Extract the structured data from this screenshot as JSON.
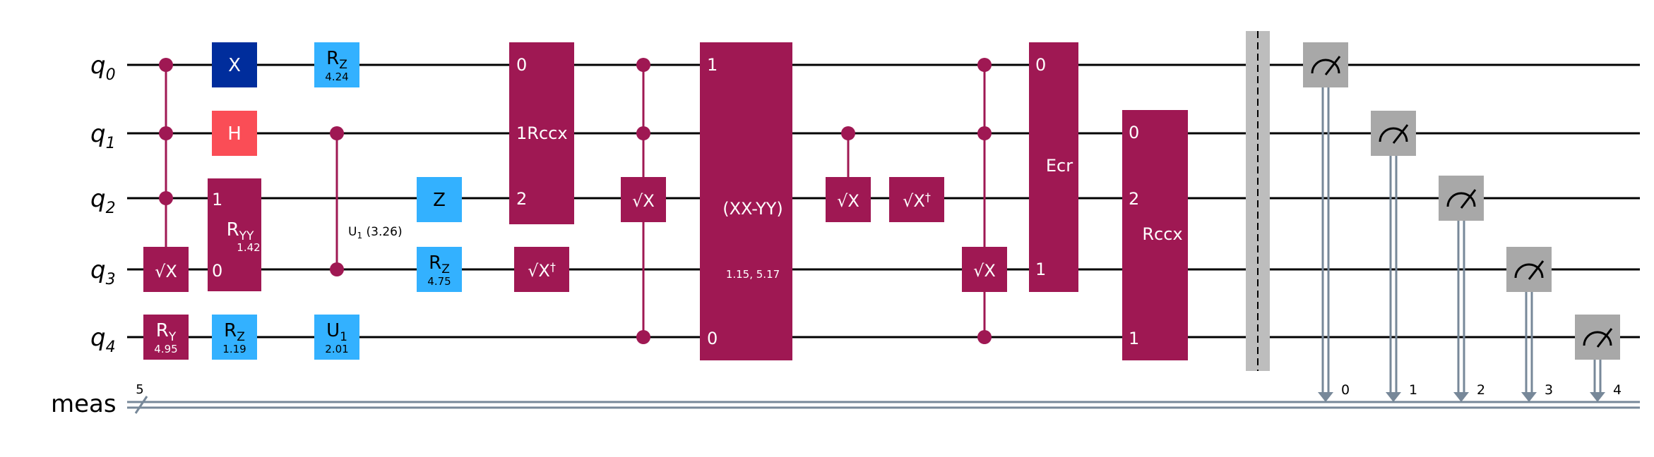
{
  "qubits": [
    {
      "base": "q",
      "index": "0"
    },
    {
      "base": "q",
      "index": "1"
    },
    {
      "base": "q",
      "index": "2"
    },
    {
      "base": "q",
      "index": "3"
    },
    {
      "base": "q",
      "index": "4"
    }
  ],
  "classical_register": {
    "label": "meas",
    "width_label": "5"
  },
  "colors": {
    "wire": "#000000",
    "classical_wire": "#778899",
    "multi_qubit": "#9f1853",
    "rotation": "#33b1ff",
    "x_gate": "#002d9c",
    "h_gate": "#fa4d56",
    "measure": "#a8a8a8",
    "barrier": "#bdbdbd",
    "gate_text": "#ffffff",
    "dark_text": "#000000"
  },
  "gates": {
    "csx_1": {
      "label": "√X"
    },
    "ry": {
      "main": "R",
      "sub": "Y",
      "param": "4.95"
    },
    "x": {
      "label": "X"
    },
    "h": {
      "label": "H"
    },
    "ryy": {
      "main": "R",
      "sub": "YY",
      "param": "1.42",
      "port_top": "1",
      "port_bottom": "0"
    },
    "rz_q4": {
      "main": "R",
      "sub": "Z",
      "param": "1.19"
    },
    "rz_q0": {
      "main": "R",
      "sub": "Z",
      "param": "4.24"
    },
    "cu1": {
      "main": "U",
      "sub": "1",
      "param": "(3.26)"
    },
    "u1": {
      "main": "U",
      "sub": "1",
      "param": "2.01"
    },
    "z": {
      "label": "Z"
    },
    "rz_q3": {
      "main": "R",
      "sub": "Z",
      "param": "4.75"
    },
    "rccx_1": {
      "label": "Rccx",
      "port_0": "0",
      "port_1": "1",
      "port_2": "2"
    },
    "sxdg_1": {
      "label": "√X",
      "dagger": "†"
    },
    "csx_2": {
      "label": "√X"
    },
    "xxmyy": {
      "label": "(XX-YY)",
      "params": "1.15, 5.17",
      "port_top": "1",
      "port_bottom": "0"
    },
    "csx_3": {
      "label": "√X"
    },
    "sxdg_2": {
      "label": "√X",
      "dagger": "†"
    },
    "csx_4": {
      "label": "√X"
    },
    "ecr": {
      "label": "Ecr",
      "port_top": "0",
      "port_bottom": "1"
    },
    "rccx_2": {
      "label": "Rccx",
      "port_0": "0",
      "port_2": "2",
      "port_1": "1"
    }
  },
  "measurements": [
    {
      "qubit": "q0",
      "clbit": "0"
    },
    {
      "qubit": "q1",
      "clbit": "1"
    },
    {
      "qubit": "q2",
      "clbit": "2"
    },
    {
      "qubit": "q3",
      "clbit": "3"
    },
    {
      "qubit": "q4",
      "clbit": "4"
    }
  ]
}
